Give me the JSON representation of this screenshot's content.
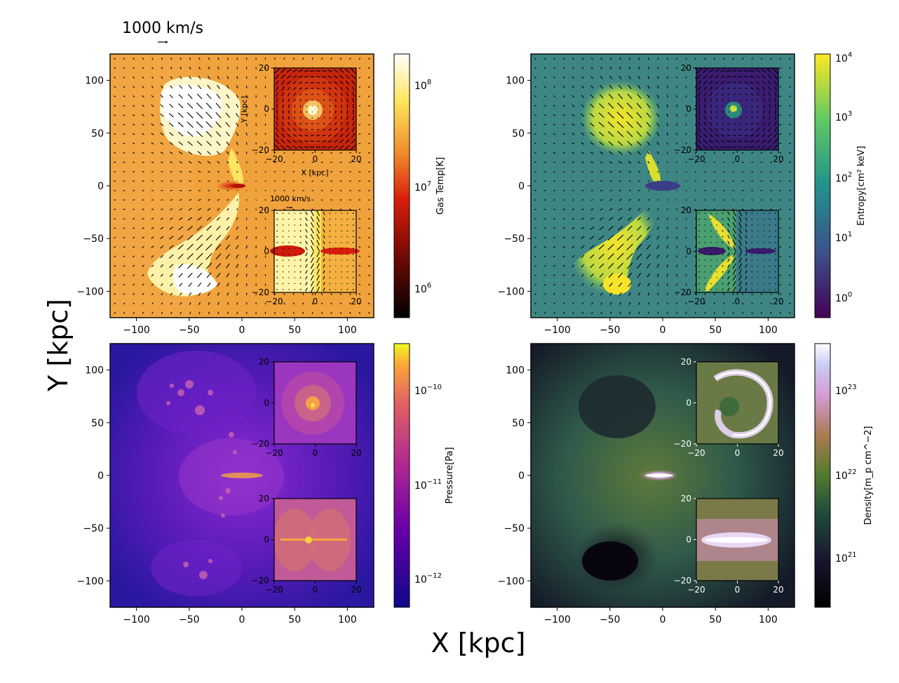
{
  "figure": {
    "xlabel": "X [kpc]",
    "ylabel": "Y [kpc]",
    "quiver_key": "1000 km/s",
    "inset_quiver_key": "1000 km/s"
  },
  "colors": {
    "temp_base": "#f2a13c",
    "temp_hot": "#fffbe4",
    "temp_cold": "#d21a10",
    "entropy_base": "#3e8a80",
    "entropy_high": "#dfe23a",
    "entropy_low": "#3b1a74",
    "pressure_base": "#2a18a0",
    "pressure_mid": "#7c2ad0",
    "pressure_high": "#e69a4c",
    "density_base": "#2f5a4a",
    "density_low": "#0a0612",
    "density_high": "#e9dcff"
  },
  "chart_data": [
    {
      "type": "heatmap",
      "panel": "gas-temperature",
      "x_ticks": [
        "−100",
        "−50",
        "0",
        "50",
        "100"
      ],
      "y_ticks": [
        "100",
        "50",
        "0",
        "−50",
        "−100"
      ],
      "xlim": [
        -125,
        125
      ],
      "ylim": [
        -125,
        125
      ],
      "colorbar": {
        "label": "Gas Temp[K]",
        "ticks": [
          "10^6",
          "10^7",
          "10^8"
        ],
        "scale": "log",
        "range": [
          500000,
          200000000
        ],
        "colormap": "afmhot"
      },
      "insets": [
        {
          "x_ticks": [
            "−20",
            "0",
            "20"
          ],
          "y_ticks": [
            "20",
            "0",
            "−20"
          ],
          "xlabel": "X [kpc]",
          "ylabel": "Y [kpc]",
          "quiver": true
        },
        {
          "x_ticks": [
            "−20",
            "0",
            "20"
          ],
          "y_ticks": [
            "20",
            "0",
            "−20"
          ],
          "quiver": true
        }
      ],
      "quiver": true
    },
    {
      "type": "heatmap",
      "panel": "entropy",
      "x_ticks": [
        "−100",
        "−50",
        "0",
        "50",
        "100"
      ],
      "y_ticks": [
        "100",
        "50",
        "0",
        "−50",
        "−100"
      ],
      "xlim": [
        -125,
        125
      ],
      "ylim": [
        -125,
        125
      ],
      "colorbar": {
        "label": "Entropy[cm² keV]",
        "ticks": [
          "10^0",
          "10^1",
          "10^2",
          "10^3",
          "10^4"
        ],
        "scale": "log",
        "range": [
          0.5,
          10000
        ],
        "colormap": "viridis"
      },
      "insets": [
        {
          "x_ticks": [
            "−20",
            "0",
            "20"
          ],
          "y_ticks": [
            "20",
            "0",
            "−20"
          ],
          "quiver": true
        },
        {
          "x_ticks": [
            "−20",
            "0",
            "20"
          ],
          "y_ticks": [
            "20",
            "0",
            "−20"
          ],
          "quiver": true
        }
      ],
      "quiver": true
    },
    {
      "type": "heatmap",
      "panel": "pressure",
      "x_ticks": [
        "−100",
        "−50",
        "0",
        "50",
        "100"
      ],
      "y_ticks": [
        "100",
        "50",
        "0",
        "−50",
        "−100"
      ],
      "xlim": [
        -125,
        125
      ],
      "ylim": [
        -125,
        125
      ],
      "colorbar": {
        "label": "Pressure[Pa]",
        "ticks": [
          "10^−10",
          "10^−11",
          "10^−12"
        ],
        "scale": "log",
        "range": [
          5e-13,
          3e-10
        ],
        "colormap": "plasma"
      },
      "insets": [
        {
          "x_ticks": [
            "−20",
            "0",
            "20"
          ],
          "y_ticks": [
            "20",
            "0",
            "−20"
          ]
        },
        {
          "x_ticks": [
            "−20",
            "0",
            "20"
          ],
          "y_ticks": [
            "20",
            "0",
            "−20"
          ]
        }
      ]
    },
    {
      "type": "heatmap",
      "panel": "density",
      "x_ticks": [
        "−100",
        "−50",
        "0",
        "50",
        "100"
      ],
      "y_ticks": [
        "100",
        "50",
        "0",
        "−50",
        "−100"
      ],
      "xlim": [
        -125,
        125
      ],
      "ylim": [
        -125,
        125
      ],
      "colorbar": {
        "label": "Density[m_p cm^−2]",
        "ticks": [
          "10^23",
          "10^22",
          "10^21"
        ],
        "scale": "log",
        "range": [
          3e+20,
          3e+23
        ],
        "colormap": "cubehelix"
      },
      "insets": [
        {
          "x_ticks": [
            "−20",
            "0",
            "20"
          ],
          "y_ticks": [
            "20",
            "0",
            "−20"
          ]
        },
        {
          "x_ticks": [
            "−20",
            "0",
            "20"
          ],
          "y_ticks": [
            "20",
            "0",
            "−20"
          ]
        }
      ]
    }
  ]
}
